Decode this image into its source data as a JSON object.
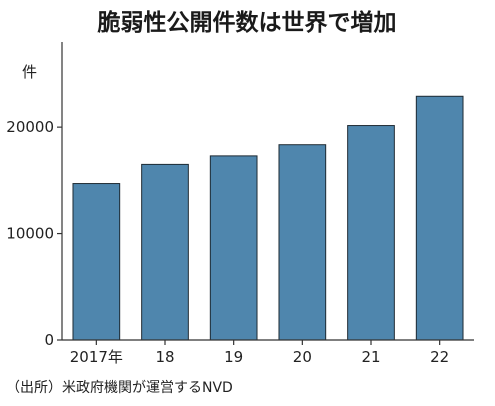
{
  "chart_data": {
    "type": "bar",
    "title": "脆弱性公開件数は世界で増加",
    "ylabel": "件",
    "categories": [
      "2017年",
      "18",
      "19",
      "20",
      "21",
      "22"
    ],
    "values": [
      14700,
      16500,
      17300,
      18350,
      20150,
      22900
    ],
    "ylim": [
      0,
      28000
    ],
    "yticks": [
      0,
      10000,
      20000
    ],
    "bar_color": "#4f86ad",
    "grid": false,
    "source": "（出所）米政府機関が運営するNVD"
  }
}
